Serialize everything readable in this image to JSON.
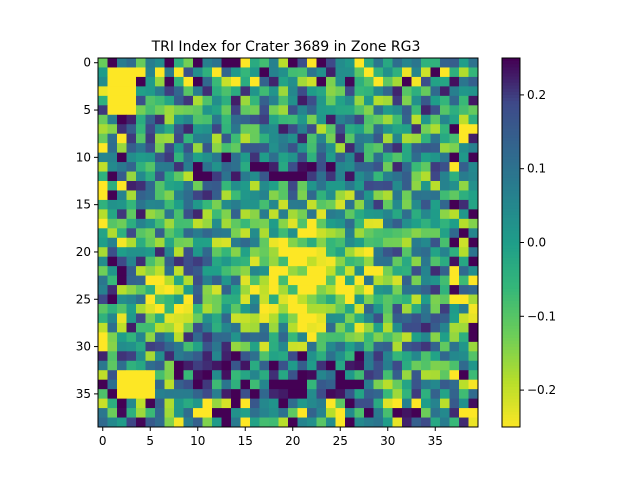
{
  "chart_data": {
    "type": "heatmap",
    "title": "TRI Index for Crater 3689 in Zone RG3",
    "xlabel": "",
    "ylabel": "",
    "rows": 39,
    "cols": 40,
    "xlim": [
      -0.5,
      39.5
    ],
    "ylim": [
      38.5,
      -0.5
    ],
    "x_ticks": [
      0,
      5,
      10,
      15,
      20,
      25,
      30,
      35
    ],
    "y_ticks": [
      0,
      5,
      10,
      15,
      20,
      25,
      30,
      35
    ],
    "colormap": "viridis_r",
    "vmin": -0.25,
    "vmax": 0.25,
    "colorbar_ticks": [
      0.2,
      0.1,
      0.0,
      -0.1,
      -0.2
    ],
    "colorbar_tick_labels": [
      "0.2",
      "0.1",
      "0.0",
      "−0.1",
      "−0.2"
    ],
    "grid": false,
    "legend": "colorbar-right"
  }
}
